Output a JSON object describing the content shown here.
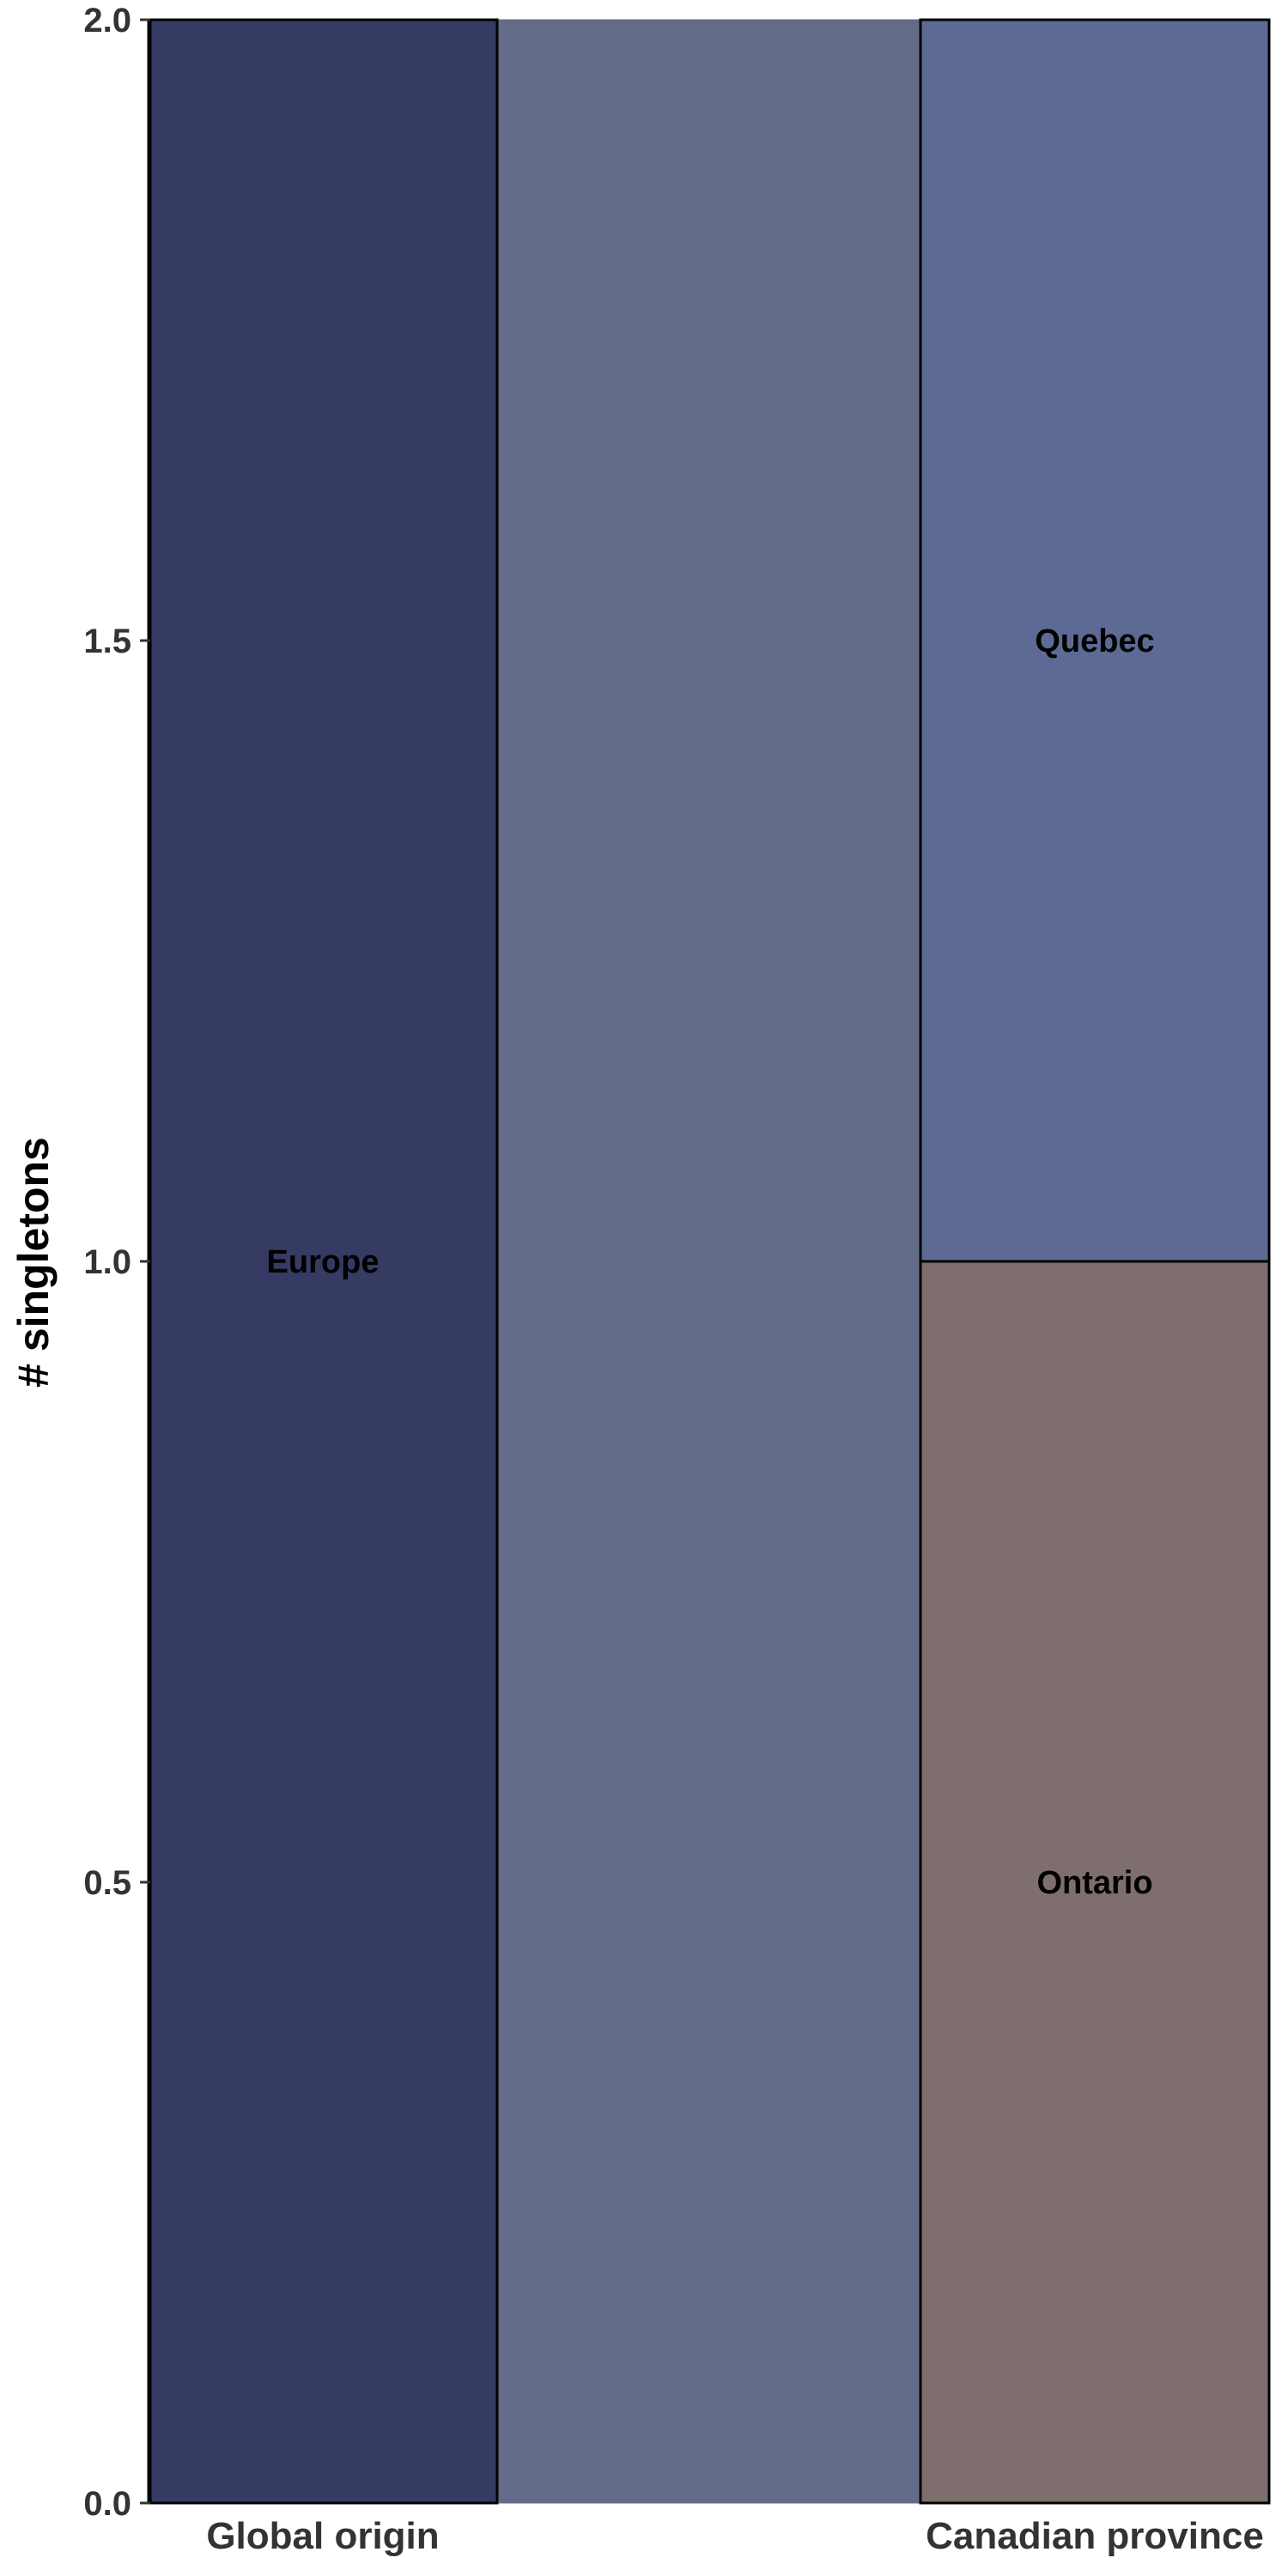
{
  "chart_data": {
    "type": "alluvial",
    "title": "",
    "xlabel": "",
    "ylabel": "# singletons",
    "ylim": [
      0,
      2
    ],
    "yticks": [
      0.0,
      0.5,
      1.0,
      1.5,
      2.0
    ],
    "ytick_labels": [
      "0.0",
      "0.5",
      "1.0",
      "1.5",
      "2.0"
    ],
    "axes": [
      "Global origin",
      "Canadian province"
    ],
    "strata": [
      {
        "axis": 0,
        "label": "Europe",
        "value": 2,
        "color": "#363b63"
      },
      {
        "axis": 1,
        "label": "Ontario",
        "value": 1,
        "color": "#7e6e6d"
      },
      {
        "axis": 1,
        "label": "Quebec",
        "value": 1,
        "color": "#5d6b94"
      }
    ],
    "flows": [
      {
        "from": "Europe",
        "to": "Ontario",
        "value": 1,
        "color": "#646b88"
      },
      {
        "from": "Europe",
        "to": "Quebec",
        "value": 1,
        "color": "#646b88"
      }
    ]
  }
}
